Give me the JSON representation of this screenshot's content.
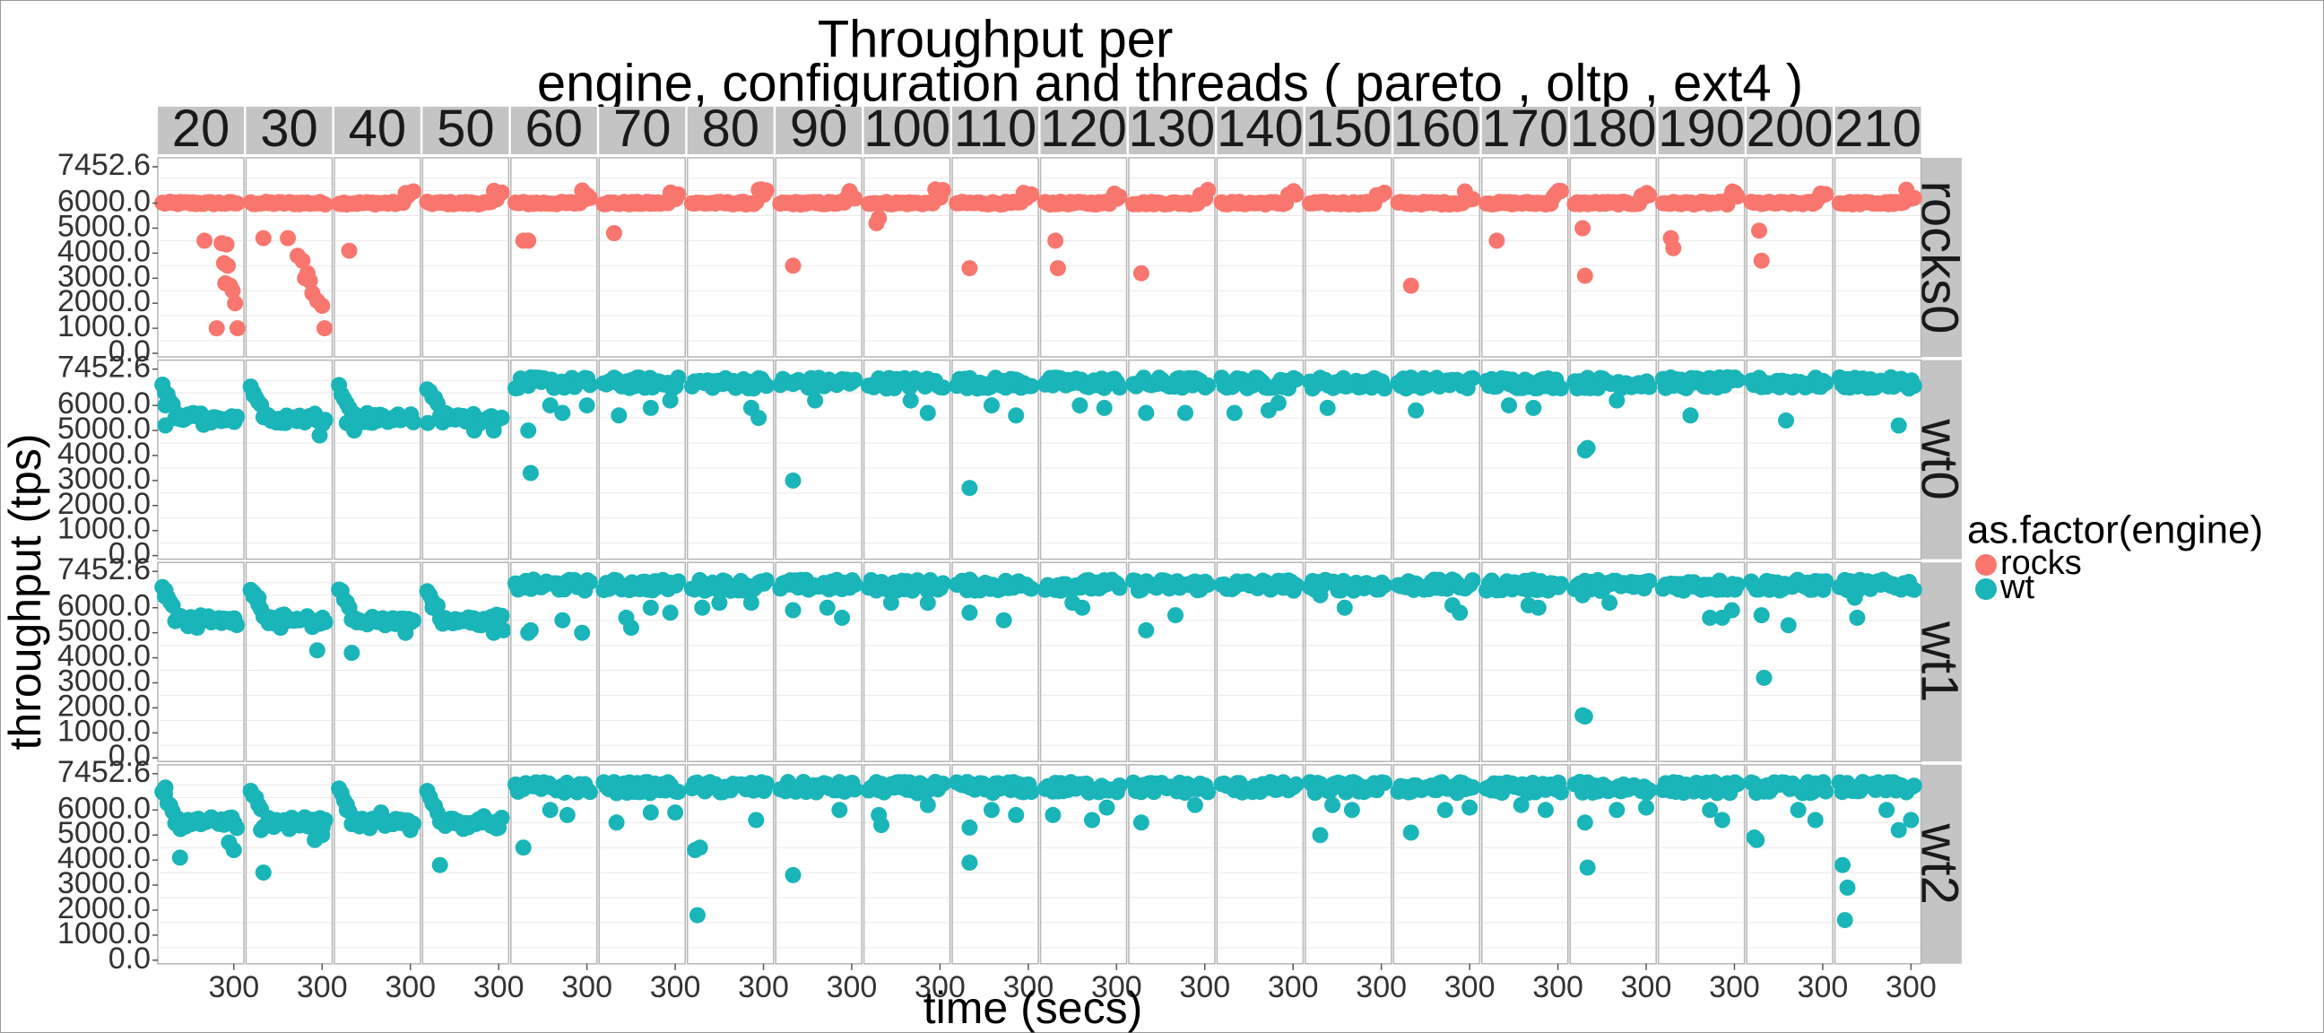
{
  "chart_data": {
    "type": "scatter",
    "title_lines": [
      "Throughput per",
      "engine, configuration and threads ( pareto , oltp , ext4 )"
    ],
    "xlabel": "time (secs)",
    "ylabel": "throughput (tps)",
    "x_tick_label": "300",
    "y_tick_labels": [
      "0.0",
      "1000.0",
      "2000.0",
      "3000.0",
      "4000.0",
      "5000.0",
      "6000.0",
      "7452.6"
    ],
    "y_ticks": [
      0,
      1000,
      2000,
      3000,
      4000,
      5000,
      6000,
      7452.6
    ],
    "ylim": [
      0,
      7452.6
    ],
    "xlim": [
      0,
      330
    ],
    "columns": [
      "20",
      "30",
      "40",
      "50",
      "60",
      "70",
      "80",
      "90",
      "100",
      "110",
      "120",
      "130",
      "140",
      "150",
      "160",
      "170",
      "180",
      "190",
      "200",
      "210"
    ],
    "rows": [
      "rocks0",
      "wt0",
      "wt1",
      "wt2"
    ],
    "row_engine": [
      "rocks",
      "wt",
      "wt",
      "wt"
    ],
    "legend": {
      "title": "as.factor(engine)",
      "position": "right",
      "entries": [
        {
          "name": "rocks",
          "color": "#F8766D"
        },
        {
          "name": "wt",
          "color": "#00BFC4"
        }
      ]
    },
    "colors": {
      "rocks": "#F8766D",
      "wt": "#19B5B8",
      "strip": "#c4c4c4",
      "grid": "#e9e9e9"
    },
    "grid": true,
    "outliers": {
      "0-0": [
        [
          180,
          4500
        ],
        [
          250,
          4400
        ],
        [
          270,
          4350
        ],
        [
          260,
          3600
        ],
        [
          275,
          3500
        ],
        [
          265,
          2800
        ],
        [
          285,
          2700
        ],
        [
          295,
          2500
        ],
        [
          305,
          2000
        ],
        [
          230,
          1000
        ],
        [
          315,
          1000
        ]
      ],
      "0-1": [
        [
          60,
          4600
        ],
        [
          160,
          4600
        ],
        [
          200,
          3900
        ],
        [
          220,
          3700
        ],
        [
          230,
          3000
        ],
        [
          250,
          2900
        ],
        [
          260,
          2400
        ],
        [
          280,
          2100
        ],
        [
          300,
          1900
        ],
        [
          310,
          1000
        ],
        [
          240,
          3200
        ]
      ],
      "0-2": [
        [
          50,
          4100
        ]
      ],
      "0-4": [
        [
          40,
          4500
        ],
        [
          60,
          4500
        ]
      ],
      "0-5": [
        [
          50,
          4800
        ]
      ],
      "0-7": [
        [
          60,
          3500
        ]
      ],
      "0-8": [
        [
          40,
          5200
        ],
        [
          50,
          5400
        ]
      ],
      "0-9": [
        [
          60,
          3400
        ]
      ],
      "0-10": [
        [
          50,
          4500
        ],
        [
          60,
          3400
        ]
      ],
      "0-11": [
        [
          40,
          3200
        ]
      ],
      "0-14": [
        [
          60,
          2700
        ]
      ],
      "0-15": [
        [
          50,
          4500
        ]
      ],
      "0-16": [
        [
          40,
          5000
        ],
        [
          50,
          3100
        ]
      ],
      "0-17": [
        [
          40,
          4600
        ],
        [
          50,
          4200
        ]
      ],
      "0-18": [
        [
          40,
          4900
        ],
        [
          50,
          3700
        ]
      ],
      "1-0": [
        [
          20,
          6000
        ],
        [
          20,
          5200
        ]
      ],
      "1-1": [
        [
          20,
          6400
        ],
        [
          80,
          5600
        ],
        [
          150,
          5300
        ],
        [
          290,
          4800
        ]
      ],
      "1-2": [
        [
          50,
          5900
        ],
        [
          40,
          5300
        ],
        [
          70,
          5000
        ]
      ],
      "1-3": [
        [
          10,
          5300
        ],
        [
          200,
          5000
        ],
        [
          280,
          5000
        ]
      ],
      "1-4": [
        [
          60,
          5000
        ],
        [
          70,
          3300
        ],
        [
          150,
          6000
        ],
        [
          200,
          5700
        ],
        [
          300,
          6000
        ]
      ],
      "1-5": [
        [
          70,
          5600
        ],
        [
          200,
          5900
        ],
        [
          280,
          6200
        ]
      ],
      "1-6": [
        [
          280,
          5500
        ],
        [
          250,
          5900
        ]
      ],
      "1-7": [
        [
          60,
          3000
        ],
        [
          150,
          6200
        ]
      ],
      "1-8": [
        [
          180,
          6200
        ],
        [
          250,
          5700
        ]
      ],
      "1-9": [
        [
          60,
          2700
        ],
        [
          150,
          6000
        ],
        [
          250,
          5600
        ]
      ],
      "1-10": [
        [
          150,
          6000
        ],
        [
          250,
          5900
        ]
      ],
      "1-11": [
        [
          60,
          5700
        ],
        [
          220,
          5700
        ]
      ],
      "1-12": [
        [
          60,
          5700
        ],
        [
          200,
          5800
        ],
        [
          240,
          6100
        ]
      ],
      "1-13": [
        [
          80,
          5900
        ]
      ],
      "1-14": [
        [
          80,
          5800
        ]
      ],
      "1-15": [
        [
          100,
          6000
        ],
        [
          200,
          5900
        ]
      ],
      "1-16": [
        [
          60,
          4300
        ],
        [
          50,
          4200
        ],
        [
          180,
          6200
        ]
      ],
      "1-17": [
        [
          120,
          5600
        ]
      ],
      "1-18": [
        [
          150,
          5400
        ]
      ],
      "1-19": [
        [
          250,
          5200
        ]
      ],
      "2-0": [
        [
          20,
          6700
        ],
        [
          150,
          5200
        ],
        [
          290,
          5400
        ]
      ],
      "2-1": [
        [
          20,
          6600
        ],
        [
          40,
          6400
        ],
        [
          130,
          5200
        ],
        [
          280,
          4300
        ]
      ],
      "2-2": [
        [
          50,
          6000
        ],
        [
          60,
          4200
        ],
        [
          280,
          5000
        ]
      ],
      "2-3": [
        [
          30,
          6000
        ],
        [
          280,
          5000
        ],
        [
          320,
          5100
        ]
      ],
      "2-4": [
        [
          60,
          5000
        ],
        [
          70,
          5100
        ],
        [
          200,
          5500
        ],
        [
          280,
          5000
        ]
      ],
      "2-5": [
        [
          100,
          5600
        ],
        [
          120,
          5200
        ],
        [
          200,
          6000
        ],
        [
          280,
          5800
        ]
      ],
      "2-6": [
        [
          50,
          6000
        ],
        [
          120,
          6200
        ],
        [
          250,
          6200
        ]
      ],
      "2-7": [
        [
          60,
          5900
        ],
        [
          200,
          6000
        ],
        [
          260,
          5600
        ]
      ],
      "2-8": [
        [
          100,
          6200
        ],
        [
          250,
          6200
        ]
      ],
      "2-9": [
        [
          60,
          5800
        ],
        [
          200,
          5500
        ]
      ],
      "2-10": [
        [
          120,
          6200
        ],
        [
          160,
          6000
        ]
      ],
      "2-11": [
        [
          60,
          5100
        ],
        [
          180,
          5700
        ]
      ],
      "2-13": [
        [
          50,
          6500
        ],
        [
          150,
          6000
        ]
      ],
      "2-14": [
        [
          230,
          6100
        ],
        [
          260,
          5800
        ]
      ],
      "2-15": [
        [
          180,
          6100
        ],
        [
          220,
          6000
        ]
      ],
      "2-16": [
        [
          40,
          1700
        ],
        [
          50,
          1650
        ],
        [
          40,
          6500
        ],
        [
          150,
          6200
        ]
      ],
      "2-17": [
        [
          200,
          5600
        ],
        [
          250,
          5600
        ],
        [
          290,
          5900
        ]
      ],
      "2-18": [
        [
          60,
          3200
        ],
        [
          50,
          5700
        ],
        [
          160,
          5300
        ]
      ],
      "2-19": [
        [
          80,
          5600
        ],
        [
          70,
          6400
        ]
      ],
      "3-0": [
        [
          20,
          6900
        ],
        [
          80,
          4100
        ],
        [
          300,
          4400
        ],
        [
          280,
          4700
        ]
      ],
      "3-1": [
        [
          50,
          5200
        ],
        [
          60,
          3500
        ],
        [
          270,
          4800
        ],
        [
          300,
          5000
        ]
      ],
      "3-2": [
        [
          40,
          6000
        ],
        [
          180,
          5900
        ],
        [
          300,
          5200
        ]
      ],
      "3-3": [
        [
          60,
          3800
        ],
        [
          200,
          5500
        ],
        [
          300,
          5300
        ]
      ],
      "3-4": [
        [
          40,
          4500
        ],
        [
          150,
          6000
        ],
        [
          220,
          5800
        ]
      ],
      "3-5": [
        [
          60,
          5500
        ],
        [
          200,
          5900
        ],
        [
          300,
          5900
        ]
      ],
      "3-6": [
        [
          20,
          4400
        ],
        [
          40,
          4500
        ],
        [
          30,
          1800
        ],
        [
          270,
          5600
        ]
      ],
      "3-7": [
        [
          60,
          3400
        ],
        [
          250,
          6000
        ]
      ],
      "3-8": [
        [
          50,
          5800
        ],
        [
          60,
          5400
        ],
        [
          250,
          6200
        ]
      ],
      "3-9": [
        [
          60,
          5300
        ],
        [
          60,
          3900
        ],
        [
          150,
          6000
        ],
        [
          250,
          5800
        ]
      ],
      "3-10": [
        [
          40,
          5800
        ],
        [
          200,
          5600
        ],
        [
          260,
          6100
        ]
      ],
      "3-11": [
        [
          40,
          5500
        ],
        [
          260,
          6200
        ]
      ],
      "3-13": [
        [
          50,
          5000
        ],
        [
          100,
          6200
        ],
        [
          180,
          6000
        ]
      ],
      "3-14": [
        [
          60,
          5100
        ],
        [
          200,
          6000
        ],
        [
          300,
          6100
        ]
      ],
      "3-15": [
        [
          150,
          6200
        ],
        [
          250,
          6000
        ]
      ],
      "3-16": [
        [
          50,
          5500
        ],
        [
          60,
          3700
        ],
        [
          180,
          6000
        ],
        [
          300,
          6100
        ]
      ],
      "3-17": [
        [
          200,
          6000
        ],
        [
          250,
          5600
        ]
      ],
      "3-18": [
        [
          20,
          4900
        ],
        [
          30,
          4800
        ],
        [
          200,
          6000
        ],
        [
          270,
          5600
        ]
      ],
      "3-19": [
        [
          20,
          3800
        ],
        [
          40,
          2900
        ],
        [
          30,
          1600
        ],
        [
          200,
          6000
        ],
        [
          250,
          5200
        ],
        [
          300,
          5600
        ]
      ]
    }
  }
}
